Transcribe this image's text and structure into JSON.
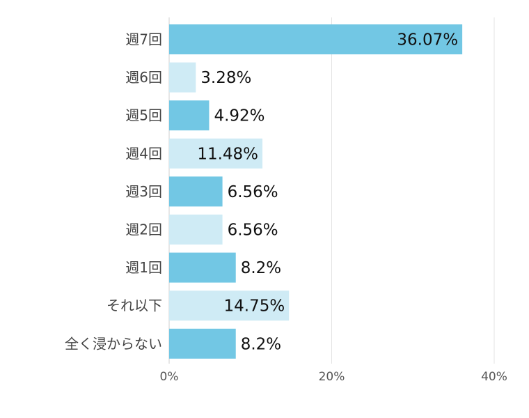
{
  "chart_data": {
    "type": "bar",
    "orientation": "horizontal",
    "categories": [
      "週7回",
      "週6回",
      "週5回",
      "週4回",
      "週3回",
      "週2回",
      "週1回",
      "それ以下",
      "全く浸からない"
    ],
    "values": [
      36.07,
      3.28,
      4.92,
      11.48,
      6.56,
      6.56,
      8.2,
      14.75,
      8.2
    ],
    "value_labels": [
      "36.07%",
      "3.28%",
      "4.92%",
      "11.48%",
      "6.56%",
      "6.56%",
      "8.2%",
      "14.75%",
      "8.2%"
    ],
    "xlim": [
      0,
      40
    ],
    "xticks": [
      0,
      20,
      40
    ],
    "xtick_labels": [
      "0%",
      "20%",
      "40%"
    ],
    "grid": true,
    "colors": [
      "#72c7e4",
      "#cfebf5"
    ],
    "title": "",
    "xlabel": "",
    "ylabel": ""
  }
}
